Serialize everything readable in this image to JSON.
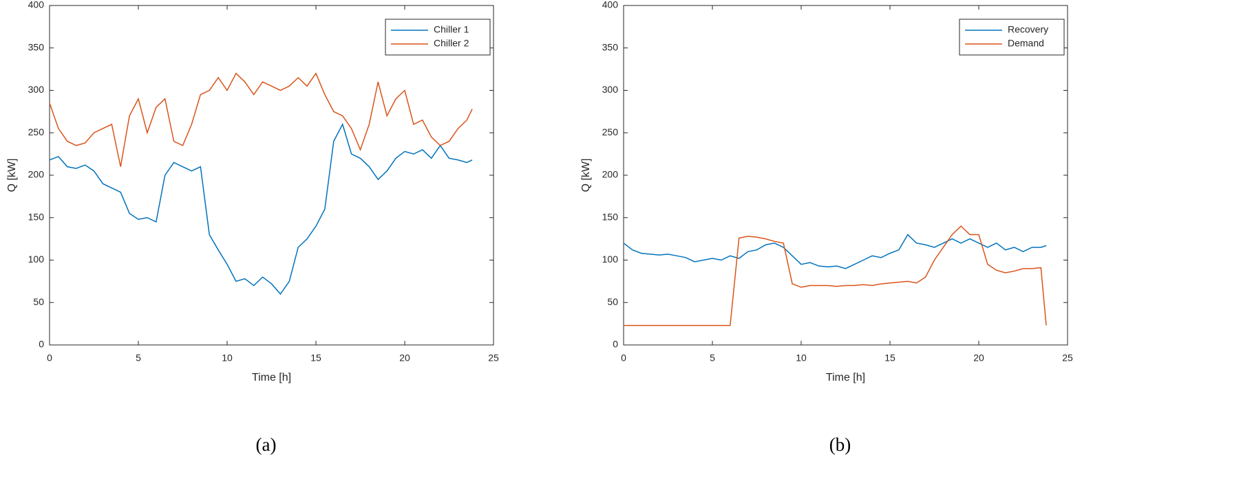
{
  "chart_data": [
    {
      "type": "line",
      "caption": "(a)",
      "xlabel": "Time [h]",
      "ylabel": "Q [kW]",
      "x": [
        0,
        0.5,
        1,
        1.5,
        2,
        2.5,
        3,
        3.5,
        4,
        4.5,
        5,
        5.5,
        6,
        6.5,
        7,
        7.5,
        8,
        8.5,
        9,
        9.5,
        10,
        10.5,
        11,
        11.5,
        12,
        12.5,
        13,
        13.5,
        14,
        14.5,
        15,
        15.5,
        16,
        16.5,
        17,
        17.5,
        18,
        18.5,
        19,
        19.5,
        20,
        20.5,
        21,
        21.5,
        22,
        22.5,
        23,
        23.5,
        23.8
      ],
      "series": [
        {
          "name": "Chiller 1",
          "color": "#0072BD",
          "values": [
            218,
            222,
            210,
            208,
            212,
            205,
            190,
            185,
            180,
            155,
            148,
            150,
            145,
            200,
            215,
            210,
            205,
            210,
            130,
            112,
            95,
            75,
            78,
            70,
            80,
            72,
            60,
            75,
            115,
            125,
            140,
            160,
            240,
            260,
            225,
            220,
            210,
            195,
            205,
            220,
            228,
            225,
            230,
            220,
            235,
            220,
            218,
            215,
            218
          ]
        },
        {
          "name": "Chiller 2",
          "color": "#D95319",
          "values": [
            285,
            255,
            240,
            235,
            238,
            250,
            255,
            260,
            210,
            270,
            290,
            250,
            280,
            290,
            240,
            235,
            260,
            295,
            300,
            315,
            300,
            320,
            310,
            295,
            310,
            305,
            300,
            305,
            315,
            305,
            320,
            295,
            275,
            270,
            255,
            230,
            260,
            310,
            270,
            290,
            300,
            260,
            265,
            245,
            235,
            240,
            255,
            265,
            278
          ]
        }
      ],
      "xlim": [
        0,
        25
      ],
      "xticks": [
        0,
        5,
        10,
        15,
        20,
        25
      ],
      "ylim": [
        0,
        400
      ],
      "yticks": [
        0,
        50,
        100,
        150,
        200,
        250,
        300,
        350,
        400
      ],
      "legend": "northeast"
    },
    {
      "type": "line",
      "caption": "(b)",
      "xlabel": "Time [h]",
      "ylabel": "Q [kW]",
      "x": [
        0,
        0.5,
        1,
        1.5,
        2,
        2.5,
        3,
        3.5,
        4,
        4.5,
        5,
        5.5,
        6,
        6.5,
        7,
        7.5,
        8,
        8.5,
        9,
        9.5,
        10,
        10.5,
        11,
        11.5,
        12,
        12.5,
        13,
        13.5,
        14,
        14.5,
        15,
        15.5,
        16,
        16.5,
        17,
        17.5,
        18,
        18.5,
        19,
        19.5,
        20,
        20.5,
        21,
        21.5,
        22,
        22.5,
        23,
        23.5,
        23.8
      ],
      "series": [
        {
          "name": "Recovery",
          "color": "#0072BD",
          "values": [
            120,
            112,
            108,
            107,
            106,
            107,
            105,
            103,
            98,
            100,
            102,
            100,
            105,
            102,
            110,
            112,
            118,
            120,
            115,
            105,
            95,
            97,
            93,
            92,
            93,
            90,
            95,
            100,
            105,
            103,
            108,
            112,
            130,
            120,
            118,
            115,
            120,
            125,
            120,
            125,
            120,
            115,
            120,
            112,
            115,
            110,
            115,
            115,
            117
          ]
        },
        {
          "name": "Demand",
          "color": "#D95319",
          "values": [
            23,
            23,
            23,
            23,
            23,
            23,
            23,
            23,
            23,
            23,
            23,
            23,
            23,
            126,
            128,
            127,
            125,
            122,
            120,
            72,
            68,
            70,
            70,
            70,
            69,
            70,
            70,
            71,
            70,
            72,
            73,
            74,
            75,
            73,
            80,
            100,
            115,
            130,
            140,
            130,
            130,
            95,
            88,
            85,
            87,
            90,
            90,
            91,
            23
          ]
        }
      ],
      "xlim": [
        0,
        25
      ],
      "xticks": [
        0,
        5,
        10,
        15,
        20,
        25
      ],
      "ylim": [
        0,
        400
      ],
      "yticks": [
        0,
        50,
        100,
        150,
        200,
        250,
        300,
        350,
        400
      ],
      "legend": "northeast"
    }
  ]
}
